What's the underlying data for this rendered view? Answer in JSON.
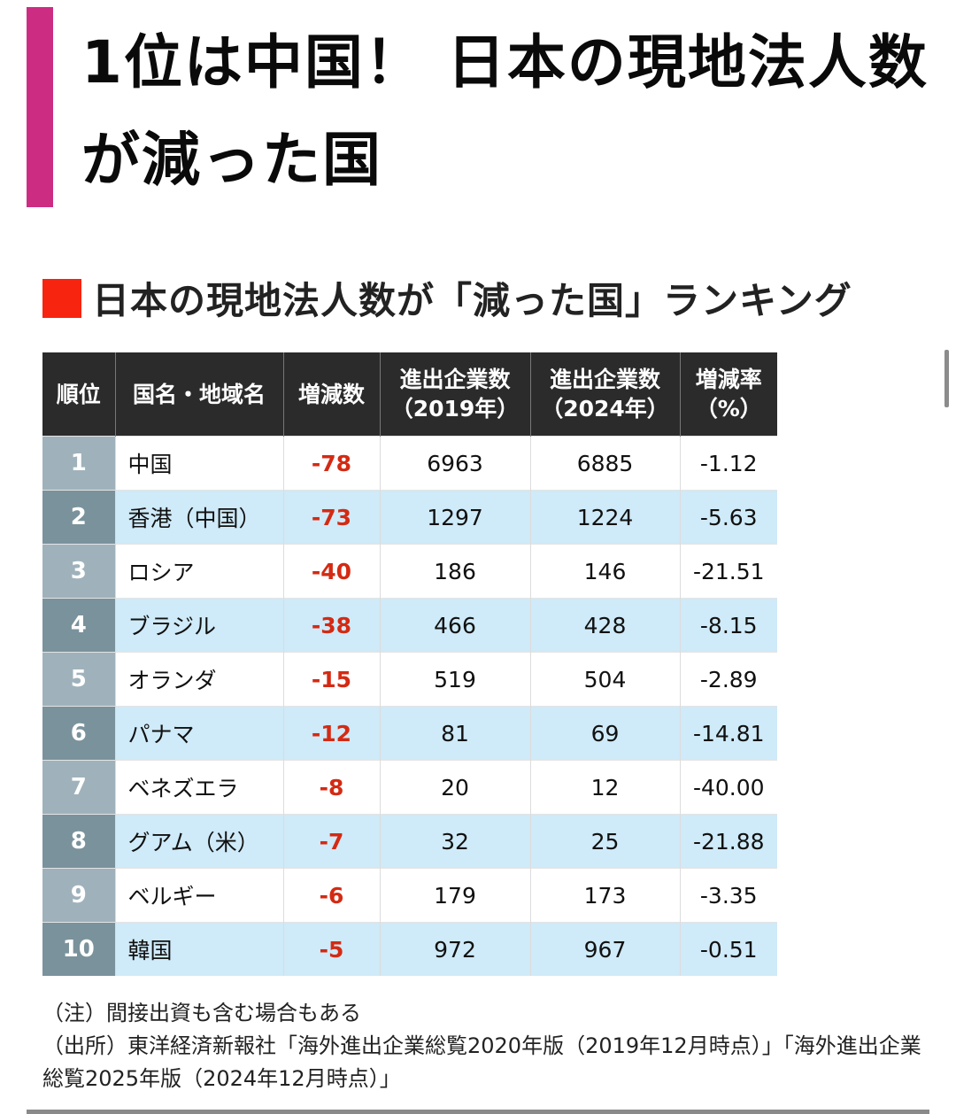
{
  "header": {
    "accent_color": "#cc2d82",
    "title_line1": "1位は中国！ 日本の現地法人数",
    "title_line2": "が減った国"
  },
  "section": {
    "marker_color": "#f7240f",
    "heading": "日本の現地法人数が「減った国」ランキング"
  },
  "table": {
    "columns": [
      {
        "line1": "順位",
        "line2": ""
      },
      {
        "line1": "国名・地域名",
        "line2": ""
      },
      {
        "line1": "増減数",
        "line2": ""
      },
      {
        "line1": "進出企業数",
        "line2": "（2019年）"
      },
      {
        "line1": "進出企業数",
        "line2": "（2024年）"
      },
      {
        "line1": "増減率",
        "line2": "（%）"
      }
    ],
    "rows": [
      {
        "rank": "1",
        "name": "中国",
        "diff": "-78",
        "y2019": "6963",
        "y2024": "6885",
        "rate": "-1.12"
      },
      {
        "rank": "2",
        "name": "香港（中国）",
        "diff": "-73",
        "y2019": "1297",
        "y2024": "1224",
        "rate": "-5.63"
      },
      {
        "rank": "3",
        "name": "ロシア",
        "diff": "-40",
        "y2019": "186",
        "y2024": "146",
        "rate": "-21.51"
      },
      {
        "rank": "4",
        "name": "ブラジル",
        "diff": "-38",
        "y2019": "466",
        "y2024": "428",
        "rate": "-8.15"
      },
      {
        "rank": "5",
        "name": "オランダ",
        "diff": "-15",
        "y2019": "519",
        "y2024": "504",
        "rate": "-2.89"
      },
      {
        "rank": "6",
        "name": "パナマ",
        "diff": "-12",
        "y2019": "81",
        "y2024": "69",
        "rate": "-14.81"
      },
      {
        "rank": "7",
        "name": "ベネズエラ",
        "diff": "-8",
        "y2019": "20",
        "y2024": "12",
        "rate": "-40.00"
      },
      {
        "rank": "8",
        "name": "グアム（米）",
        "diff": "-7",
        "y2019": "32",
        "y2024": "25",
        "rate": "-21.88"
      },
      {
        "rank": "9",
        "name": "ベルギー",
        "diff": "-6",
        "y2019": "179",
        "y2024": "173",
        "rate": "-3.35"
      },
      {
        "rank": "10",
        "name": "韓国",
        "diff": "-5",
        "y2019": "972",
        "y2024": "967",
        "rate": "-0.51"
      }
    ],
    "colors": {
      "header_bg": "#2b2b2b",
      "diff_text": "#d42a13",
      "stripe_row": "#cfeaf8",
      "rank_odd": "#9fb2bb",
      "rank_even": "#7a929c"
    }
  },
  "notes": {
    "note": "（注）間接出資も含む場合もある",
    "source": "（出所）東洋経済新報社「海外進出企業総覧2020年版（2019年12月時点）」「海外進出企業総覧2025年版（2024年12月時点）」"
  }
}
